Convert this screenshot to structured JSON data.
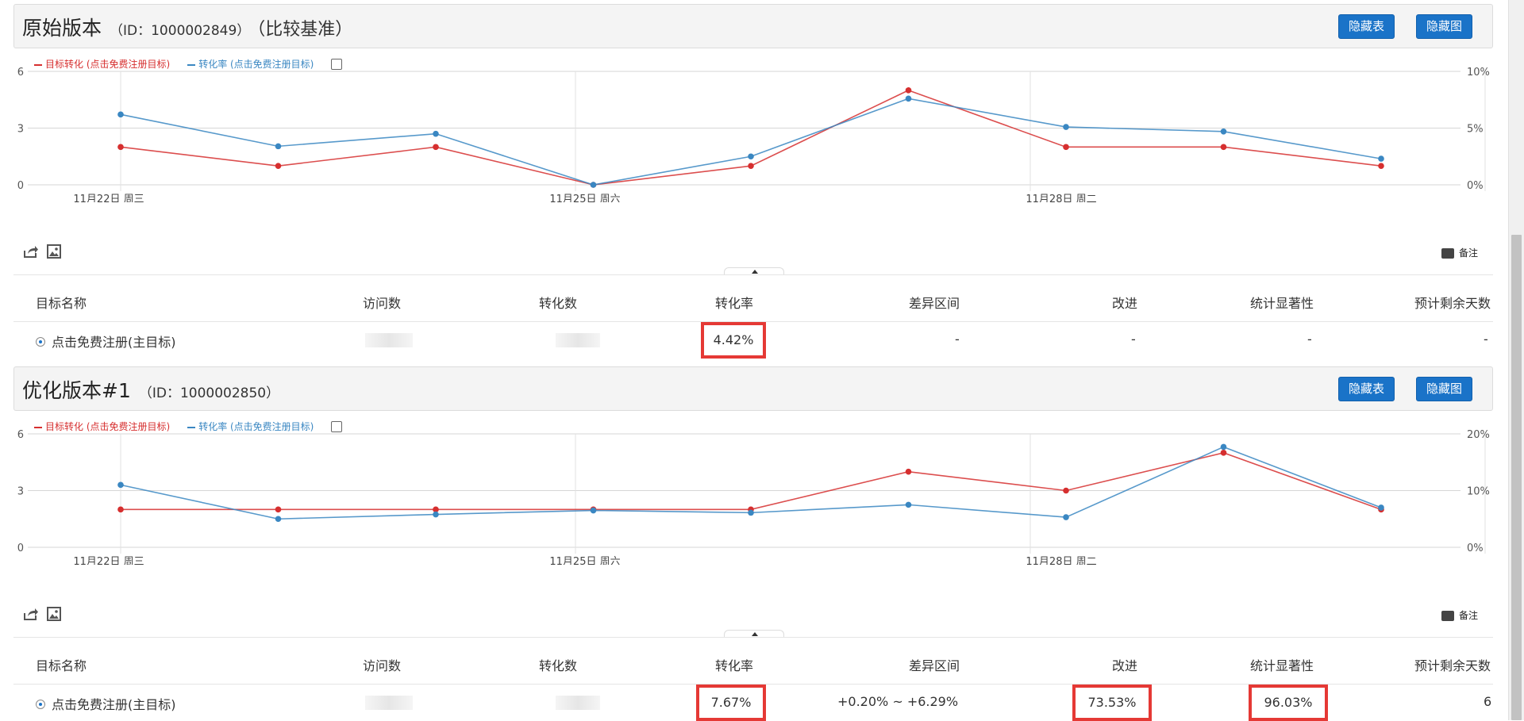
{
  "buttons": {
    "hide_table": "隐藏表",
    "hide_chart": "隐藏图"
  },
  "legend": {
    "series1": "目标转化 (点击免费注册目标)",
    "series2": "转化率 (点击免费注册目标)",
    "series1_color": "#d62f2f",
    "series2_color": "#3a87c2"
  },
  "toolbar": {
    "note_label": "备注"
  },
  "table_headers": [
    "目标名称",
    "访问数",
    "转化数",
    "转化率",
    "差异区间",
    "改进",
    "统计显著性",
    "预计剩余天数"
  ],
  "variants": [
    {
      "title": "原始版本",
      "id_text": "（ID：1000002849）",
      "extra": "（比较基准）",
      "chart_data": {
        "type": "line",
        "x_tick_labels": [
          "11月22日 周三",
          "11月25日 周六",
          "11月28日 周二"
        ],
        "left_axis": {
          "ticks": [
            "0",
            "3",
            "6"
          ],
          "min": 0,
          "max": 6
        },
        "right_axis": {
          "ticks": [
            "0%",
            "5%",
            "10%"
          ],
          "min": 0,
          "max": 10
        },
        "series": [
          {
            "name": "目标转化 (点击免费注册目标)",
            "axis": "left",
            "values": [
              2,
              1,
              2,
              0,
              1,
              5,
              2,
              2,
              1
            ]
          },
          {
            "name": "转化率 (点击免费注册目标)",
            "axis": "right",
            "values": [
              6.2,
              3.4,
              4.5,
              0,
              2.5,
              7.6,
              5.1,
              4.7,
              2.3
            ]
          }
        ]
      },
      "row": {
        "goal_name": "点击免费注册(主目标)",
        "conversion_rate": "4.42%",
        "interval": "-",
        "improvement": "-",
        "significance": "-",
        "days_left": "-"
      }
    },
    {
      "title": "优化版本#1",
      "id_text": "（ID：1000002850）",
      "extra": "",
      "chart_data": {
        "type": "line",
        "x_tick_labels": [
          "11月22日 周三",
          "11月25日 周六",
          "11月28日 周二"
        ],
        "left_axis": {
          "ticks": [
            "0",
            "3",
            "6"
          ],
          "min": 0,
          "max": 6
        },
        "right_axis": {
          "ticks": [
            "0%",
            "10%",
            "20%"
          ],
          "min": 0,
          "max": 20
        },
        "series": [
          {
            "name": "目标转化 (点击免费注册目标)",
            "axis": "left",
            "values": [
              2,
              2,
              2,
              2,
              2,
              4,
              3,
              5,
              2
            ]
          },
          {
            "name": "转化率 (点击免费注册目标)",
            "axis": "right",
            "values": [
              11,
              5,
              5.8,
              6.5,
              6.1,
              7.5,
              5.3,
              17.7,
              7
            ]
          }
        ]
      },
      "row": {
        "goal_name": "点击免费注册(主目标)",
        "conversion_rate": "7.67%",
        "interval": "+0.20% ~ +6.29%",
        "improvement": "73.53%",
        "significance": "96.03%",
        "days_left": "6"
      }
    }
  ]
}
